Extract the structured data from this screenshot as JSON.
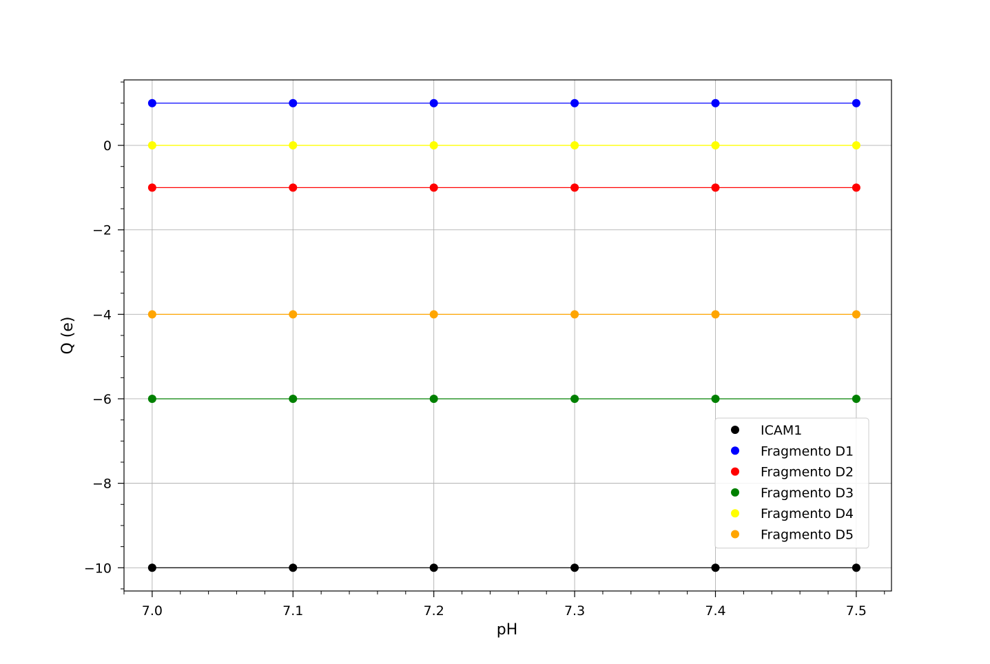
{
  "chart_data": {
    "type": "line",
    "title": "",
    "xlabel": "pH",
    "ylabel": "Q (e)",
    "xlim": [
      6.98,
      7.525
    ],
    "ylim": [
      -10.55,
      1.55
    ],
    "x": [
      7.0,
      7.1,
      7.2,
      7.3,
      7.4,
      7.5
    ],
    "x_ticks": [
      7.0,
      7.1,
      7.2,
      7.3,
      7.4,
      7.5
    ],
    "x_tick_labels": [
      "7.0",
      "7.1",
      "7.2",
      "7.3",
      "7.4",
      "7.5"
    ],
    "y_ticks": [
      0,
      -2,
      -4,
      -6,
      -8,
      -10
    ],
    "y_tick_labels": [
      "0",
      "−2",
      "−4",
      "−6",
      "−8",
      "−10"
    ],
    "grid": true,
    "legend_position": "lower-right",
    "series": [
      {
        "name": "ICAM1",
        "color": "#000000",
        "values": [
          -10,
          -10,
          -10,
          -10,
          -10,
          -10
        ]
      },
      {
        "name": "Fragmento D1",
        "color": "#0000ff",
        "values": [
          1,
          1,
          1,
          1,
          1,
          1
        ]
      },
      {
        "name": "Fragmento D2",
        "color": "#ff0000",
        "values": [
          -1,
          -1,
          -1,
          -1,
          -1,
          -1
        ]
      },
      {
        "name": "Fragmento D3",
        "color": "#008000",
        "values": [
          -6,
          -6,
          -6,
          -6,
          -6,
          -6
        ]
      },
      {
        "name": "Fragmento D4",
        "color": "#ffff00",
        "values": [
          0,
          0,
          0,
          0,
          0,
          0
        ]
      },
      {
        "name": "Fragmento D5",
        "color": "#ffa500",
        "values": [
          -4,
          -4,
          -4,
          -4,
          -4,
          -4
        ]
      }
    ]
  }
}
